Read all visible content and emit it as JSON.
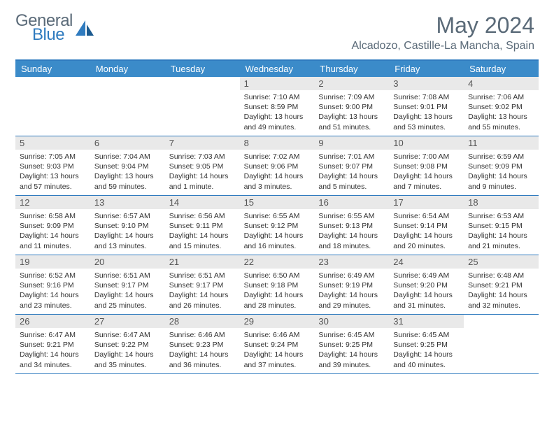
{
  "logo": {
    "text1": "General",
    "text2": "Blue",
    "text1_color": "#5a6a78",
    "text2_color": "#2f7bbf"
  },
  "header": {
    "title": "May 2024",
    "subtitle": "Alcadozo, Castille-La Mancha, Spain"
  },
  "colors": {
    "accent": "#2f7bbf",
    "header_bg": "#3b8bc9",
    "daynum_bg": "#e9e9e9",
    "text_muted": "#5a6a78"
  },
  "days_of_week": [
    "Sunday",
    "Monday",
    "Tuesday",
    "Wednesday",
    "Thursday",
    "Friday",
    "Saturday"
  ],
  "weeks": [
    [
      {
        "n": "",
        "sr": "",
        "ss": "",
        "dl": ""
      },
      {
        "n": "",
        "sr": "",
        "ss": "",
        "dl": ""
      },
      {
        "n": "",
        "sr": "",
        "ss": "",
        "dl": ""
      },
      {
        "n": "1",
        "sr": "Sunrise: 7:10 AM",
        "ss": "Sunset: 8:59 PM",
        "dl": "Daylight: 13 hours and 49 minutes."
      },
      {
        "n": "2",
        "sr": "Sunrise: 7:09 AM",
        "ss": "Sunset: 9:00 PM",
        "dl": "Daylight: 13 hours and 51 minutes."
      },
      {
        "n": "3",
        "sr": "Sunrise: 7:08 AM",
        "ss": "Sunset: 9:01 PM",
        "dl": "Daylight: 13 hours and 53 minutes."
      },
      {
        "n": "4",
        "sr": "Sunrise: 7:06 AM",
        "ss": "Sunset: 9:02 PM",
        "dl": "Daylight: 13 hours and 55 minutes."
      }
    ],
    [
      {
        "n": "5",
        "sr": "Sunrise: 7:05 AM",
        "ss": "Sunset: 9:03 PM",
        "dl": "Daylight: 13 hours and 57 minutes."
      },
      {
        "n": "6",
        "sr": "Sunrise: 7:04 AM",
        "ss": "Sunset: 9:04 PM",
        "dl": "Daylight: 13 hours and 59 minutes."
      },
      {
        "n": "7",
        "sr": "Sunrise: 7:03 AM",
        "ss": "Sunset: 9:05 PM",
        "dl": "Daylight: 14 hours and 1 minute."
      },
      {
        "n": "8",
        "sr": "Sunrise: 7:02 AM",
        "ss": "Sunset: 9:06 PM",
        "dl": "Daylight: 14 hours and 3 minutes."
      },
      {
        "n": "9",
        "sr": "Sunrise: 7:01 AM",
        "ss": "Sunset: 9:07 PM",
        "dl": "Daylight: 14 hours and 5 minutes."
      },
      {
        "n": "10",
        "sr": "Sunrise: 7:00 AM",
        "ss": "Sunset: 9:08 PM",
        "dl": "Daylight: 14 hours and 7 minutes."
      },
      {
        "n": "11",
        "sr": "Sunrise: 6:59 AM",
        "ss": "Sunset: 9:09 PM",
        "dl": "Daylight: 14 hours and 9 minutes."
      }
    ],
    [
      {
        "n": "12",
        "sr": "Sunrise: 6:58 AM",
        "ss": "Sunset: 9:09 PM",
        "dl": "Daylight: 14 hours and 11 minutes."
      },
      {
        "n": "13",
        "sr": "Sunrise: 6:57 AM",
        "ss": "Sunset: 9:10 PM",
        "dl": "Daylight: 14 hours and 13 minutes."
      },
      {
        "n": "14",
        "sr": "Sunrise: 6:56 AM",
        "ss": "Sunset: 9:11 PM",
        "dl": "Daylight: 14 hours and 15 minutes."
      },
      {
        "n": "15",
        "sr": "Sunrise: 6:55 AM",
        "ss": "Sunset: 9:12 PM",
        "dl": "Daylight: 14 hours and 16 minutes."
      },
      {
        "n": "16",
        "sr": "Sunrise: 6:55 AM",
        "ss": "Sunset: 9:13 PM",
        "dl": "Daylight: 14 hours and 18 minutes."
      },
      {
        "n": "17",
        "sr": "Sunrise: 6:54 AM",
        "ss": "Sunset: 9:14 PM",
        "dl": "Daylight: 14 hours and 20 minutes."
      },
      {
        "n": "18",
        "sr": "Sunrise: 6:53 AM",
        "ss": "Sunset: 9:15 PM",
        "dl": "Daylight: 14 hours and 21 minutes."
      }
    ],
    [
      {
        "n": "19",
        "sr": "Sunrise: 6:52 AM",
        "ss": "Sunset: 9:16 PM",
        "dl": "Daylight: 14 hours and 23 minutes."
      },
      {
        "n": "20",
        "sr": "Sunrise: 6:51 AM",
        "ss": "Sunset: 9:17 PM",
        "dl": "Daylight: 14 hours and 25 minutes."
      },
      {
        "n": "21",
        "sr": "Sunrise: 6:51 AM",
        "ss": "Sunset: 9:17 PM",
        "dl": "Daylight: 14 hours and 26 minutes."
      },
      {
        "n": "22",
        "sr": "Sunrise: 6:50 AM",
        "ss": "Sunset: 9:18 PM",
        "dl": "Daylight: 14 hours and 28 minutes."
      },
      {
        "n": "23",
        "sr": "Sunrise: 6:49 AM",
        "ss": "Sunset: 9:19 PM",
        "dl": "Daylight: 14 hours and 29 minutes."
      },
      {
        "n": "24",
        "sr": "Sunrise: 6:49 AM",
        "ss": "Sunset: 9:20 PM",
        "dl": "Daylight: 14 hours and 31 minutes."
      },
      {
        "n": "25",
        "sr": "Sunrise: 6:48 AM",
        "ss": "Sunset: 9:21 PM",
        "dl": "Daylight: 14 hours and 32 minutes."
      }
    ],
    [
      {
        "n": "26",
        "sr": "Sunrise: 6:47 AM",
        "ss": "Sunset: 9:21 PM",
        "dl": "Daylight: 14 hours and 34 minutes."
      },
      {
        "n": "27",
        "sr": "Sunrise: 6:47 AM",
        "ss": "Sunset: 9:22 PM",
        "dl": "Daylight: 14 hours and 35 minutes."
      },
      {
        "n": "28",
        "sr": "Sunrise: 6:46 AM",
        "ss": "Sunset: 9:23 PM",
        "dl": "Daylight: 14 hours and 36 minutes."
      },
      {
        "n": "29",
        "sr": "Sunrise: 6:46 AM",
        "ss": "Sunset: 9:24 PM",
        "dl": "Daylight: 14 hours and 37 minutes."
      },
      {
        "n": "30",
        "sr": "Sunrise: 6:45 AM",
        "ss": "Sunset: 9:25 PM",
        "dl": "Daylight: 14 hours and 39 minutes."
      },
      {
        "n": "31",
        "sr": "Sunrise: 6:45 AM",
        "ss": "Sunset: 9:25 PM",
        "dl": "Daylight: 14 hours and 40 minutes."
      },
      {
        "n": "",
        "sr": "",
        "ss": "",
        "dl": ""
      }
    ]
  ]
}
